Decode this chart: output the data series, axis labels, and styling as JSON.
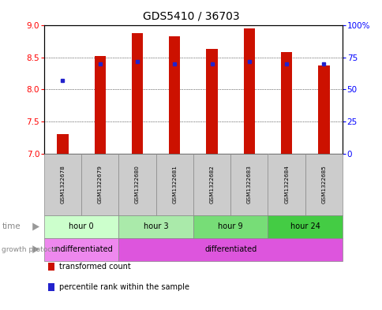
{
  "title": "GDS5410 / 36703",
  "samples": [
    "GSM1322678",
    "GSM1322679",
    "GSM1322680",
    "GSM1322681",
    "GSM1322682",
    "GSM1322683",
    "GSM1322684",
    "GSM1322685"
  ],
  "transformed_count": [
    7.3,
    8.52,
    8.88,
    8.83,
    8.63,
    8.95,
    8.58,
    8.38
  ],
  "percentile_rank": [
    57,
    70,
    72,
    70,
    70,
    72,
    70,
    70
  ],
  "bar_bottom": 7.0,
  "ylim_left": [
    7.0,
    9.0
  ],
  "ylim_right": [
    0,
    100
  ],
  "yticks_left": [
    7.0,
    7.5,
    8.0,
    8.5,
    9.0
  ],
  "yticks_right": [
    0,
    25,
    50,
    75,
    100
  ],
  "ytick_labels_right": [
    "0",
    "25",
    "50",
    "75",
    "100%"
  ],
  "bar_color": "#cc1100",
  "percentile_color": "#2222cc",
  "time_groups": [
    {
      "label": "hour 0",
      "samples": [
        0,
        1
      ],
      "color": "#ccffcc"
    },
    {
      "label": "hour 3",
      "samples": [
        2,
        3
      ],
      "color": "#aaeaaa"
    },
    {
      "label": "hour 9",
      "samples": [
        4,
        5
      ],
      "color": "#77dd77"
    },
    {
      "label": "hour 24",
      "samples": [
        6,
        7
      ],
      "color": "#44cc44"
    }
  ],
  "growth_protocol_groups": [
    {
      "label": "undifferentiated",
      "samples": [
        0,
        1
      ],
      "color": "#ee88ee"
    },
    {
      "label": "differentiated",
      "samples": [
        2,
        7
      ],
      "color": "#dd55dd"
    }
  ],
  "sample_col_color": "#cccccc",
  "legend_items": [
    {
      "label": "transformed count",
      "color": "#cc1100"
    },
    {
      "label": "percentile rank within the sample",
      "color": "#2222cc"
    }
  ]
}
